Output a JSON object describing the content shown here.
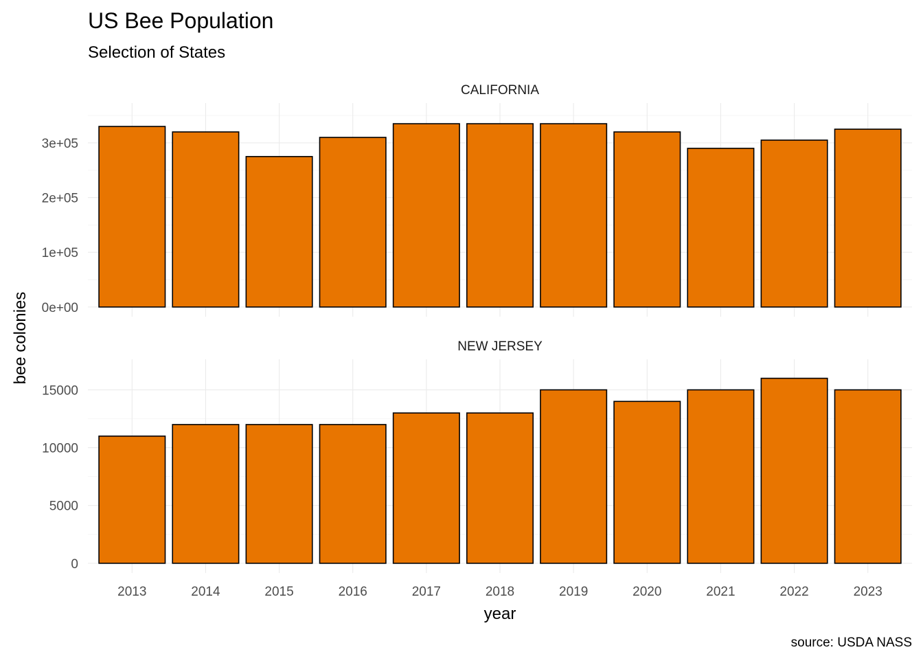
{
  "chart_data": {
    "type": "bar",
    "title": "US Bee Population",
    "subtitle": "Selection of States",
    "xlabel": "year",
    "ylabel": "bee colonies",
    "caption": "source: USDA NASS",
    "categories": [
      "2013",
      "2014",
      "2015",
      "2016",
      "2017",
      "2018",
      "2019",
      "2020",
      "2021",
      "2022",
      "2023"
    ],
    "bar_fill": "#E87500",
    "bar_outline": "#000000",
    "grid": true,
    "legend": "none",
    "panels": [
      {
        "strip_label": "CALIFORNIA",
        "values": [
          330000,
          320000,
          275000,
          310000,
          335000,
          335000,
          335000,
          320000,
          290000,
          305000,
          325000
        ],
        "ylim": [
          0,
          355000
        ],
        "y_ticks": [
          0,
          100000,
          200000,
          300000
        ],
        "y_tick_labels": [
          "0e+00",
          "1e+05",
          "2e+05",
          "3e+05"
        ]
      },
      {
        "strip_label": "NEW JERSEY",
        "values": [
          11000,
          12000,
          12000,
          12000,
          13000,
          13000,
          15000,
          14000,
          15000,
          16000,
          15000
        ],
        "ylim": [
          0,
          16800
        ],
        "y_ticks": [
          0,
          5000,
          10000,
          15000
        ],
        "y_tick_labels": [
          "0",
          "5000",
          "10000",
          "15000"
        ]
      }
    ]
  }
}
